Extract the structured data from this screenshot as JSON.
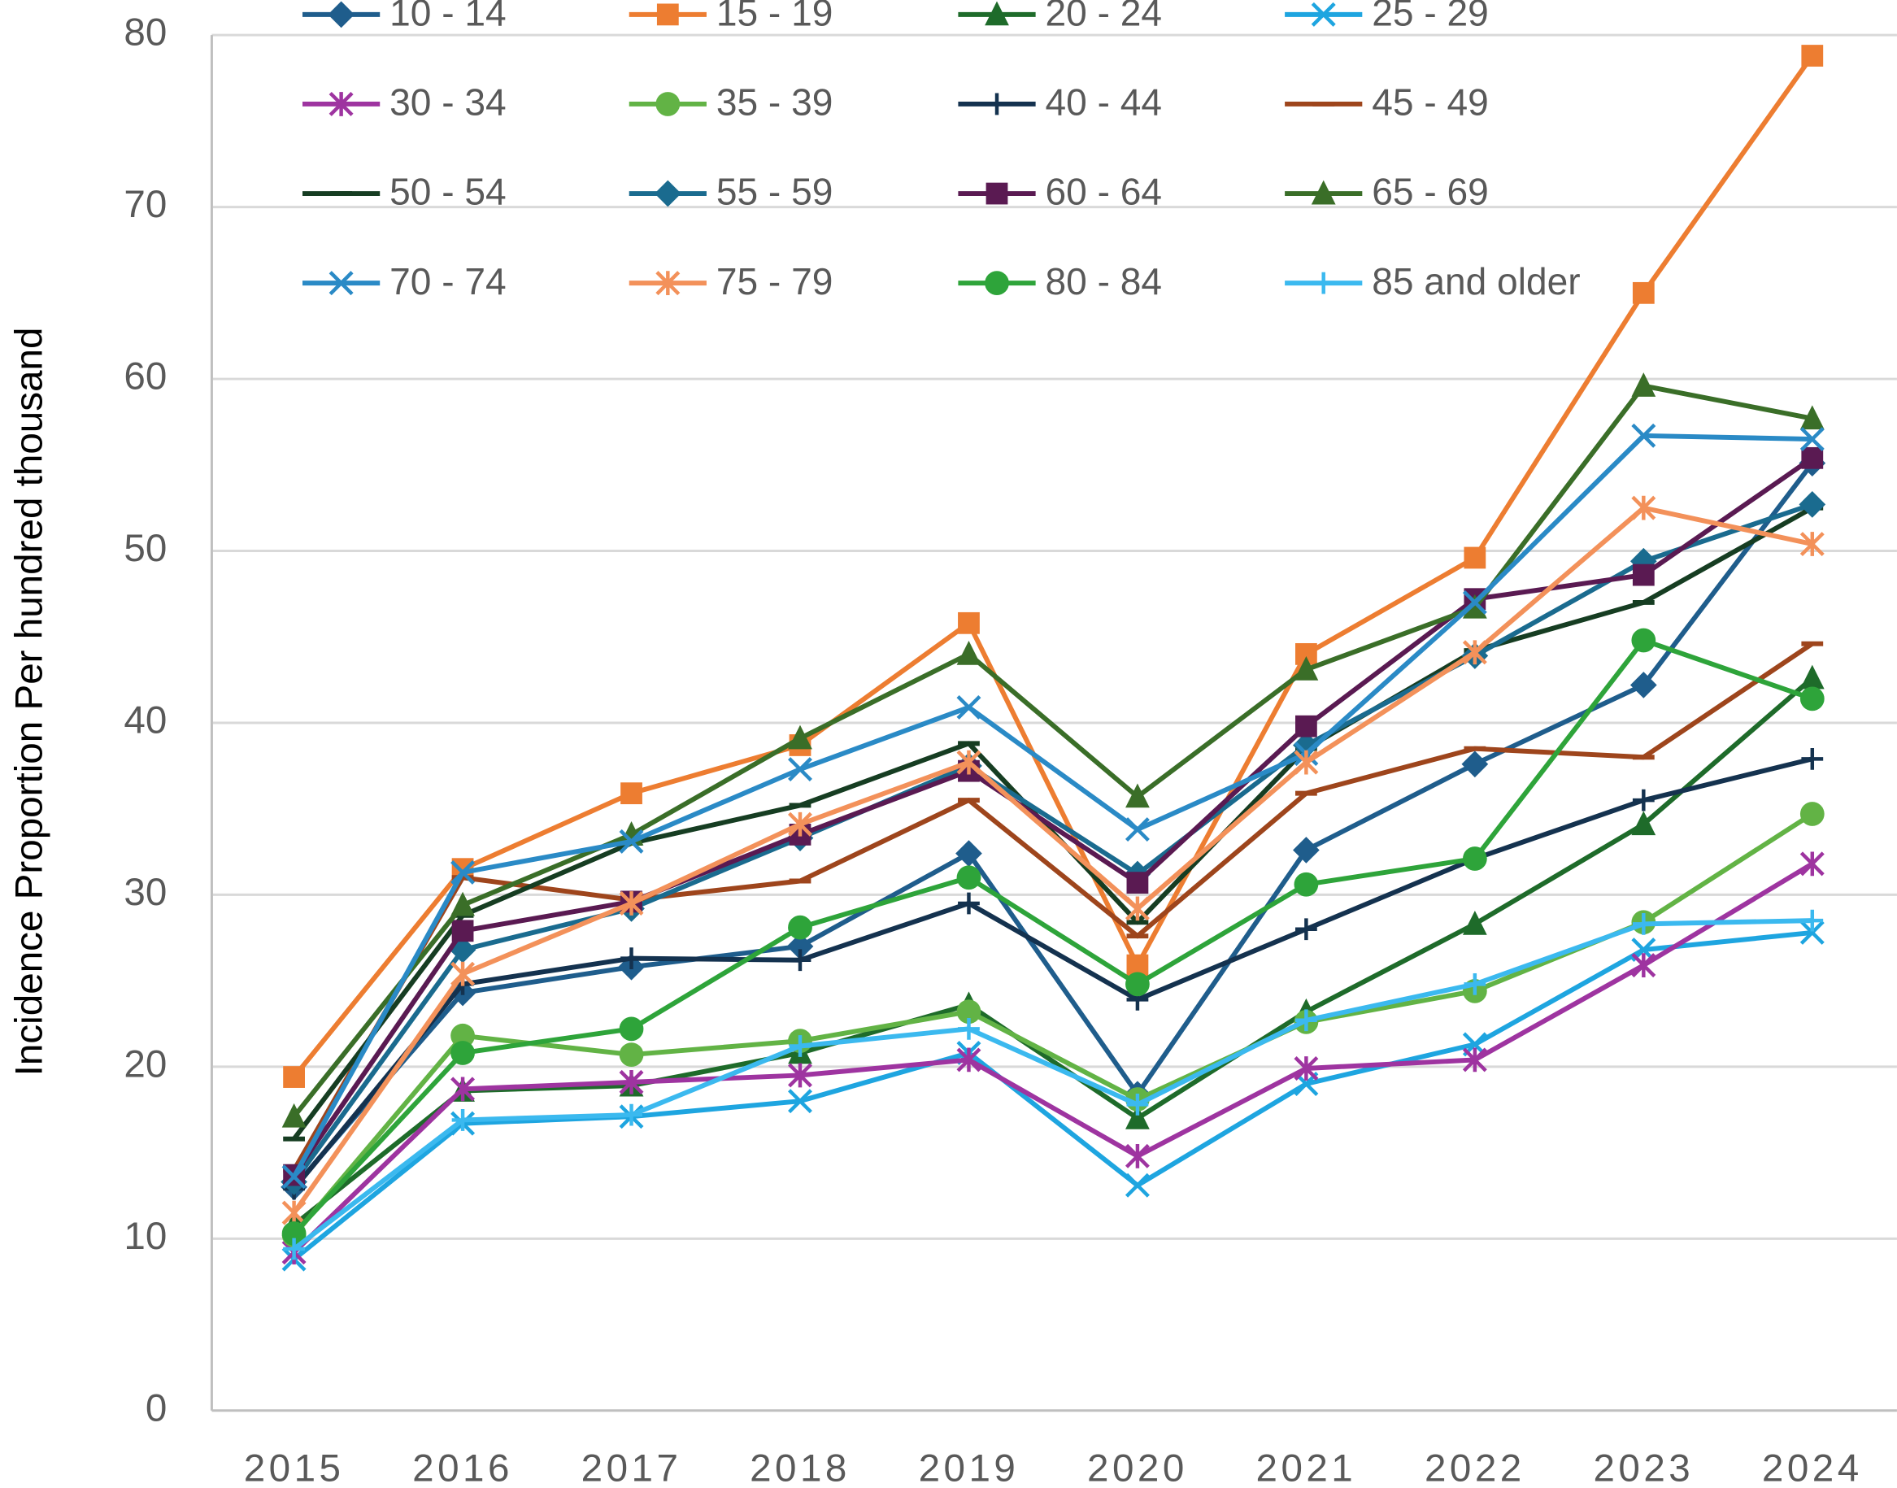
{
  "chart_data": {
    "type": "line",
    "y_label": "Incidence Proportion Per hundred thousand",
    "categories": [
      "2015",
      "2016",
      "2017",
      "2018",
      "2019",
      "2020",
      "2021",
      "2022",
      "2023",
      "2024"
    ],
    "ylim": [
      0,
      80
    ],
    "yticks": [
      0,
      10,
      20,
      30,
      40,
      50,
      60,
      70,
      80
    ],
    "grid": true,
    "series": [
      {
        "name": "10 - 14",
        "color": "#1f5d8c",
        "marker": "diamond",
        "values": [
          13.0,
          24.3,
          25.8,
          27.0,
          32.4,
          18.4,
          32.6,
          37.6,
          42.2,
          55.1
        ]
      },
      {
        "name": "15 - 19",
        "color": "#ed7d31",
        "marker": "square",
        "values": [
          19.4,
          31.5,
          35.9,
          38.7,
          45.8,
          25.9,
          44.0,
          49.6,
          65.0,
          78.8
        ]
      },
      {
        "name": "20 - 24",
        "color": "#1e6b2a",
        "marker": "triangle",
        "values": [
          10.8,
          18.6,
          18.9,
          20.8,
          23.6,
          17.0,
          23.2,
          28.3,
          34.1,
          42.6
        ]
      },
      {
        "name": "25 - 29",
        "color": "#1ea5e0",
        "marker": "x",
        "values": [
          8.8,
          16.7,
          17.1,
          18.0,
          20.8,
          13.1,
          19.0,
          21.3,
          26.8,
          27.8
        ]
      },
      {
        "name": "30 - 34",
        "color": "#9e34a0",
        "marker": "star",
        "values": [
          9.2,
          18.7,
          19.1,
          19.5,
          20.4,
          14.8,
          19.9,
          20.4,
          25.9,
          31.8
        ]
      },
      {
        "name": "35 - 39",
        "color": "#62b345",
        "marker": "circle",
        "values": [
          10.2,
          21.8,
          20.7,
          21.5,
          23.2,
          18.1,
          22.6,
          24.4,
          28.4,
          34.7
        ]
      },
      {
        "name": "40 - 44",
        "color": "#14324f",
        "marker": "plus",
        "values": [
          12.9,
          24.8,
          26.3,
          26.2,
          29.5,
          23.9,
          28.0,
          32.1,
          35.5,
          37.9
        ]
      },
      {
        "name": "45 - 49",
        "color": "#9e451c",
        "marker": "dash",
        "values": [
          14.0,
          31.0,
          29.7,
          30.8,
          35.5,
          27.6,
          35.9,
          38.5,
          38.0,
          44.6
        ]
      },
      {
        "name": "50 - 54",
        "color": "#163d22",
        "marker": "dash",
        "values": [
          15.8,
          28.8,
          33.0,
          35.2,
          38.8,
          28.4,
          38.5,
          44.2,
          47.0,
          52.5
        ]
      },
      {
        "name": "55 - 59",
        "color": "#1a6b8f",
        "marker": "diamond",
        "values": [
          13.3,
          26.8,
          29.2,
          33.3,
          37.5,
          31.2,
          38.7,
          43.9,
          49.4,
          52.7
        ]
      },
      {
        "name": "60 - 64",
        "color": "#5a1a52",
        "marker": "square",
        "values": [
          13.7,
          27.9,
          29.6,
          33.5,
          37.2,
          30.7,
          39.8,
          47.2,
          48.6,
          55.4
        ]
      },
      {
        "name": "65 - 69",
        "color": "#3a6e28",
        "marker": "triangle",
        "values": [
          17.1,
          29.4,
          33.5,
          39.1,
          44.0,
          35.7,
          43.1,
          46.7,
          59.6,
          57.7
        ]
      },
      {
        "name": "70 - 74",
        "color": "#2a8ac6",
        "marker": "x",
        "values": [
          13.6,
          31.3,
          33.1,
          37.3,
          40.9,
          33.8,
          38.2,
          47.0,
          56.7,
          56.5
        ]
      },
      {
        "name": "75 - 79",
        "color": "#f3915a",
        "marker": "star",
        "values": [
          11.5,
          25.4,
          29.5,
          34.1,
          37.7,
          29.2,
          37.7,
          44.1,
          52.5,
          50.4
        ]
      },
      {
        "name": "80 - 84",
        "color": "#2ea43a",
        "marker": "circle",
        "values": [
          10.3,
          20.8,
          22.2,
          28.1,
          31.0,
          24.8,
          30.6,
          32.1,
          44.8,
          41.4
        ]
      },
      {
        "name": "85 and older",
        "color": "#3bb9ef",
        "marker": "plus",
        "values": [
          9.4,
          16.9,
          17.2,
          21.2,
          22.2,
          17.8,
          22.7,
          24.8,
          28.3,
          28.5
        ]
      }
    ]
  }
}
